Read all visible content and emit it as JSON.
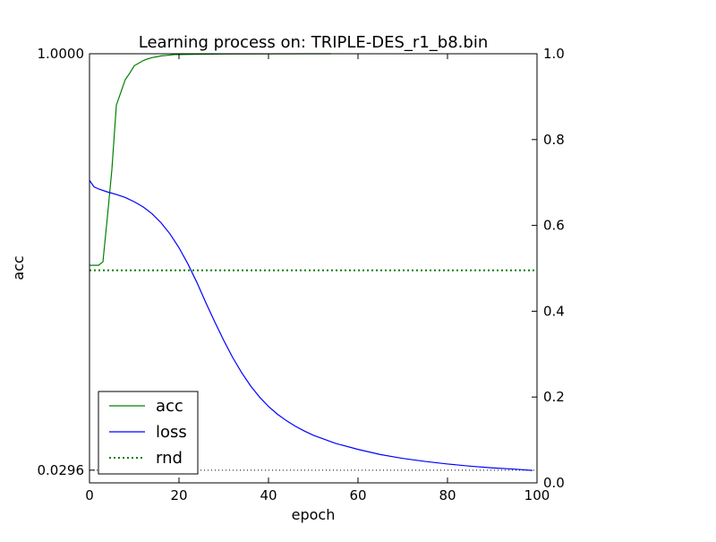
{
  "chart_data": {
    "type": "line",
    "title": "Learning process on: TRIPLE-DES_r1_b8.bin",
    "xlabel": "epoch",
    "ylabel": "acc",
    "ylabel_right": "",
    "xlim": [
      0,
      100
    ],
    "ylim_left": [
      0.0,
      1.0
    ],
    "ylim_right": [
      0.0,
      1.0
    ],
    "x_ticks": [
      "0",
      "20",
      "40",
      "60",
      "80",
      "100"
    ],
    "x_tick_values": [
      0,
      20,
      40,
      60,
      80,
      100
    ],
    "y_left_ticks": [
      "1.0000",
      "0.0296"
    ],
    "y_left_tick_values": [
      1.0,
      0.0296
    ],
    "y_right_ticks": [
      "0.0",
      "0.2",
      "0.4",
      "0.6",
      "0.8",
      "1.0"
    ],
    "y_right_tick_values": [
      0.0,
      0.2,
      0.4,
      0.6,
      0.8,
      1.0
    ],
    "grid": false,
    "legend_position": "lower-left",
    "series": [
      {
        "name": "acc",
        "axis": "left",
        "color": "#008000",
        "style": "solid",
        "x": [
          0,
          1,
          2,
          3,
          4,
          5,
          6,
          7,
          8,
          9,
          10,
          11,
          12,
          13,
          14,
          15,
          16,
          17,
          18,
          19,
          20,
          25,
          30,
          40,
          50,
          54
        ],
        "y": [
          0.507,
          0.507,
          0.507,
          0.515,
          0.62,
          0.73,
          0.88,
          0.91,
          0.94,
          0.955,
          0.972,
          0.978,
          0.984,
          0.988,
          0.991,
          0.993,
          0.995,
          0.996,
          0.997,
          0.998,
          0.998,
          0.999,
          0.9995,
          0.9998,
          1.0,
          1.0
        ]
      },
      {
        "name": "loss",
        "axis": "right",
        "color": "#0000ff",
        "style": "solid",
        "x": [
          0,
          1,
          2,
          4,
          6,
          8,
          10,
          12,
          14,
          16,
          18,
          20,
          22,
          24,
          26,
          28,
          30,
          32,
          34,
          36,
          38,
          40,
          42,
          44,
          46,
          48,
          50,
          55,
          60,
          65,
          70,
          75,
          80,
          85,
          90,
          95,
          99
        ],
        "y": [
          0.705,
          0.69,
          0.685,
          0.678,
          0.672,
          0.665,
          0.655,
          0.643,
          0.627,
          0.606,
          0.58,
          0.548,
          0.51,
          0.467,
          0.42,
          0.375,
          0.332,
          0.292,
          0.257,
          0.226,
          0.2,
          0.178,
          0.16,
          0.145,
          0.132,
          0.121,
          0.111,
          0.092,
          0.078,
          0.066,
          0.057,
          0.05,
          0.044,
          0.039,
          0.035,
          0.032,
          0.029
        ]
      },
      {
        "name": "rnd",
        "axis": "left",
        "color": "#008000",
        "style": "dotted",
        "x": [
          0,
          100
        ],
        "y": [
          0.4953,
          0.4953
        ]
      }
    ],
    "reference_lines": [
      {
        "axis": "left",
        "y": 0.0296,
        "color": "#000000",
        "style": "dotted"
      }
    ]
  }
}
